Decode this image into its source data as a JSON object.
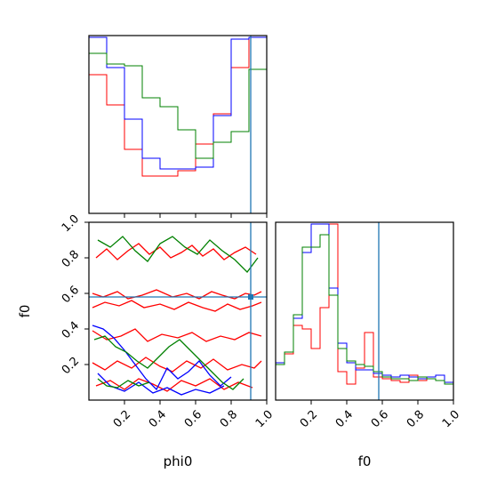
{
  "chart_data": {
    "type": "corner",
    "parameters": [
      "phi0",
      "f0"
    ],
    "truth": {
      "phi0": 0.91,
      "f0": 0.58
    },
    "ticks": [
      0.2,
      0.4,
      0.6,
      0.8,
      1.0
    ],
    "tick_labels": [
      "0.2",
      "0.4",
      "0.6",
      "0.8",
      "1.0"
    ],
    "xlim": [
      0,
      1
    ],
    "ylim_f0": [
      0,
      1
    ],
    "series": [
      {
        "color": "#ff0000"
      },
      {
        "color": "#0000ff"
      },
      {
        "color": "#008000"
      }
    ],
    "hist_phi0": {
      "bins": 10,
      "max_height": 1.0,
      "red": [
        0.78,
        0.61,
        0.36,
        0.21,
        0.21,
        0.24,
        0.39,
        0.56,
        0.82,
        0.99
      ],
      "blue": [
        0.99,
        0.82,
        0.53,
        0.31,
        0.25,
        0.25,
        0.26,
        0.55,
        0.98,
        0.99
      ],
      "green": [
        0.9,
        0.84,
        0.83,
        0.65,
        0.6,
        0.47,
        0.31,
        0.4,
        0.46,
        0.81
      ]
    },
    "hist_f0": {
      "bins": 20,
      "max_height": 1.0,
      "red": [
        0.21,
        0.26,
        0.42,
        0.4,
        0.29,
        0.52,
        0.99,
        0.16,
        0.09,
        0.18,
        0.38,
        0.13,
        0.12,
        0.11,
        0.1,
        0.14,
        0.11,
        0.12,
        0.11,
        0.09
      ],
      "blue": [
        0.21,
        0.27,
        0.46,
        0.83,
        0.99,
        0.99,
        0.63,
        0.32,
        0.21,
        0.17,
        0.17,
        0.15,
        0.14,
        0.13,
        0.14,
        0.13,
        0.12,
        0.13,
        0.14,
        0.1
      ],
      "green": [
        0.2,
        0.27,
        0.48,
        0.86,
        0.86,
        0.93,
        0.59,
        0.29,
        0.22,
        0.2,
        0.19,
        0.16,
        0.13,
        0.12,
        0.12,
        0.11,
        0.13,
        0.12,
        0.11,
        0.09
      ]
    },
    "contours_2d": [
      {
        "series": "red",
        "x": [
          0.02,
          0.08,
          0.16,
          0.22,
          0.3,
          0.38,
          0.47,
          0.55,
          0.62,
          0.69,
          0.75,
          0.82,
          0.88,
          0.93,
          0.97
        ],
        "y": [
          0.6,
          0.58,
          0.61,
          0.57,
          0.59,
          0.62,
          0.58,
          0.6,
          0.57,
          0.61,
          0.59,
          0.57,
          0.6,
          0.59,
          0.61
        ]
      },
      {
        "series": "red",
        "x": [
          0.02,
          0.09,
          0.17,
          0.24,
          0.31,
          0.4,
          0.48,
          0.56,
          0.64,
          0.71,
          0.78,
          0.85,
          0.92,
          0.97
        ],
        "y": [
          0.52,
          0.55,
          0.53,
          0.56,
          0.52,
          0.54,
          0.51,
          0.55,
          0.52,
          0.5,
          0.54,
          0.51,
          0.53,
          0.55
        ]
      },
      {
        "series": "red",
        "x": [
          0.02,
          0.1,
          0.18,
          0.26,
          0.33,
          0.41,
          0.5,
          0.58,
          0.66,
          0.74,
          0.82,
          0.9,
          0.97
        ],
        "y": [
          0.39,
          0.34,
          0.36,
          0.4,
          0.33,
          0.37,
          0.35,
          0.38,
          0.33,
          0.36,
          0.34,
          0.38,
          0.36
        ]
      },
      {
        "series": "red",
        "x": [
          0.02,
          0.09,
          0.16,
          0.24,
          0.32,
          0.4,
          0.47,
          0.55,
          0.63,
          0.7,
          0.78,
          0.86,
          0.93,
          0.97
        ],
        "y": [
          0.21,
          0.17,
          0.22,
          0.18,
          0.24,
          0.19,
          0.16,
          0.22,
          0.18,
          0.23,
          0.17,
          0.2,
          0.18,
          0.22
        ]
      },
      {
        "series": "red",
        "x": [
          0.04,
          0.1,
          0.16,
          0.22,
          0.28,
          0.34,
          0.4,
          0.46,
          0.52,
          0.58,
          0.64,
          0.7,
          0.76,
          0.82,
          0.88,
          0.94
        ],
        "y": [
          0.8,
          0.85,
          0.79,
          0.84,
          0.88,
          0.82,
          0.86,
          0.8,
          0.83,
          0.87,
          0.81,
          0.85,
          0.79,
          0.83,
          0.86,
          0.82
        ]
      },
      {
        "series": "red",
        "x": [
          0.04,
          0.12,
          0.2,
          0.28,
          0.36,
          0.44,
          0.52,
          0.6,
          0.68,
          0.76,
          0.84,
          0.92
        ],
        "y": [
          0.08,
          0.11,
          0.06,
          0.12,
          0.09,
          0.05,
          0.11,
          0.08,
          0.12,
          0.06,
          0.1,
          0.07
        ]
      },
      {
        "series": "blue",
        "x": [
          0.02,
          0.08,
          0.14,
          0.2,
          0.26,
          0.32,
          0.38,
          0.44,
          0.5,
          0.56,
          0.62,
          0.68,
          0.74,
          0.8
        ],
        "y": [
          0.42,
          0.4,
          0.35,
          0.28,
          0.2,
          0.12,
          0.06,
          0.18,
          0.12,
          0.16,
          0.22,
          0.14,
          0.08,
          0.13
        ]
      },
      {
        "series": "blue",
        "x": [
          0.05,
          0.12,
          0.2,
          0.28,
          0.36,
          0.44,
          0.52,
          0.6,
          0.68,
          0.76
        ],
        "y": [
          0.15,
          0.08,
          0.05,
          0.1,
          0.04,
          0.07,
          0.03,
          0.06,
          0.04,
          0.08
        ]
      },
      {
        "series": "green",
        "x": [
          0.05,
          0.12,
          0.19,
          0.26,
          0.33,
          0.4,
          0.47,
          0.54,
          0.61,
          0.68,
          0.75,
          0.82,
          0.89,
          0.95
        ],
        "y": [
          0.9,
          0.86,
          0.92,
          0.84,
          0.78,
          0.88,
          0.92,
          0.86,
          0.82,
          0.9,
          0.84,
          0.79,
          0.72,
          0.8
        ]
      },
      {
        "series": "green",
        "x": [
          0.03,
          0.09,
          0.15,
          0.21,
          0.27,
          0.33,
          0.39,
          0.45,
          0.51,
          0.57,
          0.63,
          0.69,
          0.75,
          0.81,
          0.87
        ],
        "y": [
          0.34,
          0.36,
          0.3,
          0.27,
          0.22,
          0.18,
          0.24,
          0.3,
          0.34,
          0.28,
          0.22,
          0.16,
          0.1,
          0.06,
          0.12
        ]
      },
      {
        "series": "green",
        "x": [
          0.05,
          0.1,
          0.16,
          0.22,
          0.28,
          0.34
        ],
        "y": [
          0.12,
          0.08,
          0.07,
          0.11,
          0.08,
          0.1
        ]
      }
    ]
  }
}
